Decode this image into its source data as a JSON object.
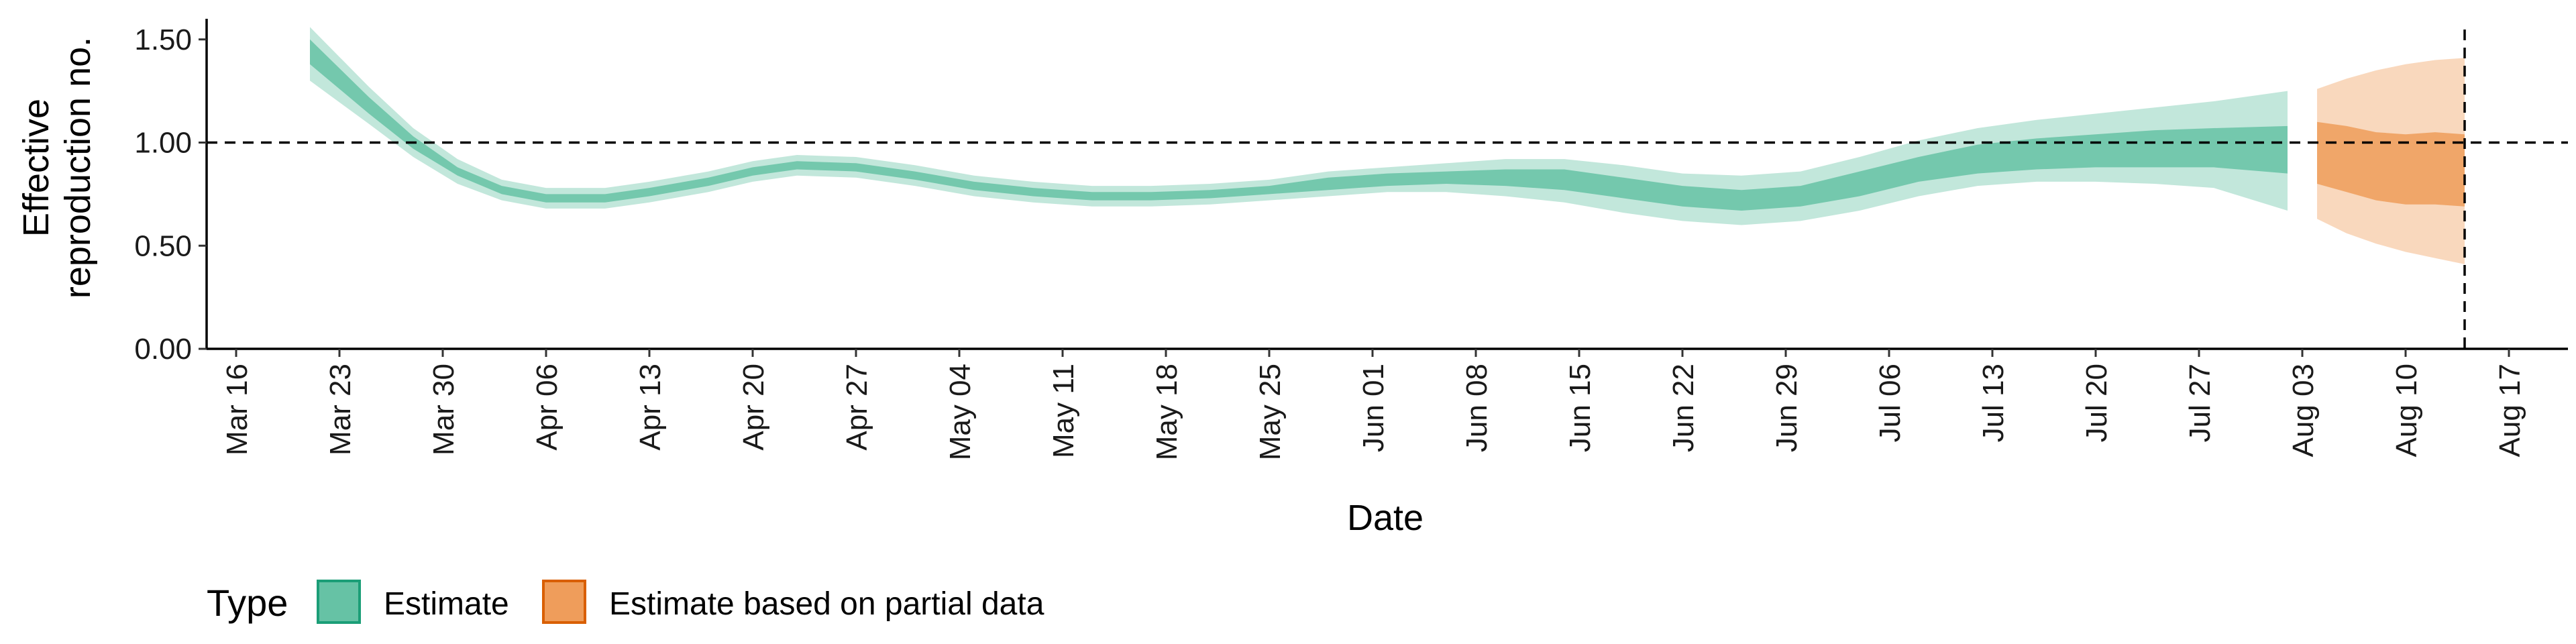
{
  "chart_data": {
    "type": "area",
    "title": "",
    "xlabel": "Date",
    "ylabel_lines": [
      "Effective",
      "reproduction no."
    ],
    "ylim": [
      0,
      1.6
    ],
    "y_ticks": [
      0,
      0.5,
      1.0,
      1.5
    ],
    "y_tick_labels": [
      "0.00",
      "0.50",
      "1.00",
      "1.50"
    ],
    "x_range": [
      "2020-03-14",
      "2020-08-21"
    ],
    "x_ticks": [
      "2020-03-16",
      "2020-03-23",
      "2020-03-30",
      "2020-04-06",
      "2020-04-13",
      "2020-04-20",
      "2020-04-27",
      "2020-05-04",
      "2020-05-11",
      "2020-05-18",
      "2020-05-25",
      "2020-06-01",
      "2020-06-08",
      "2020-06-15",
      "2020-06-22",
      "2020-06-29",
      "2020-07-06",
      "2020-07-13",
      "2020-07-20",
      "2020-07-27",
      "2020-08-03",
      "2020-08-10",
      "2020-08-17"
    ],
    "x_tick_labels": [
      "Mar 16",
      "Mar 23",
      "Mar 30",
      "Apr 06",
      "Apr 13",
      "Apr 20",
      "Apr 27",
      "May 04",
      "May 11",
      "May 18",
      "May 25",
      "Jun 01",
      "Jun 08",
      "Jun 15",
      "Jun 22",
      "Jun 29",
      "Jul 06",
      "Jul 13",
      "Jul 20",
      "Jul 27",
      "Aug 03",
      "Aug 10",
      "Aug 17"
    ],
    "hline": 1.0,
    "vline": "2020-08-14",
    "legend_position": "bottom-left",
    "legend_title": "Type",
    "series": [
      {
        "name": "Estimate",
        "fill_color": "#66c2a5",
        "border_color": "#1b9e77",
        "x": [
          "2020-03-21",
          "2020-03-25",
          "2020-03-28",
          "2020-03-31",
          "2020-04-03",
          "2020-04-06",
          "2020-04-10",
          "2020-04-13",
          "2020-04-17",
          "2020-04-20",
          "2020-04-23",
          "2020-04-27",
          "2020-05-01",
          "2020-05-05",
          "2020-05-09",
          "2020-05-13",
          "2020-05-17",
          "2020-05-21",
          "2020-05-25",
          "2020-05-29",
          "2020-06-02",
          "2020-06-06",
          "2020-06-10",
          "2020-06-14",
          "2020-06-18",
          "2020-06-22",
          "2020-06-26",
          "2020-06-30",
          "2020-07-04",
          "2020-07-08",
          "2020-07-12",
          "2020-07-16",
          "2020-07-20",
          "2020-07-24",
          "2020-07-28",
          "2020-08-02"
        ],
        "median": [
          1.44,
          1.18,
          1.0,
          0.86,
          0.77,
          0.73,
          0.73,
          0.76,
          0.81,
          0.86,
          0.89,
          0.88,
          0.84,
          0.79,
          0.76,
          0.74,
          0.74,
          0.75,
          0.77,
          0.8,
          0.82,
          0.83,
          0.83,
          0.82,
          0.78,
          0.74,
          0.72,
          0.74,
          0.8,
          0.87,
          0.92,
          0.95,
          0.96,
          0.97,
          0.98,
          0.97
        ],
        "inner_lower": [
          1.38,
          1.14,
          0.97,
          0.84,
          0.75,
          0.71,
          0.71,
          0.74,
          0.79,
          0.84,
          0.87,
          0.86,
          0.82,
          0.77,
          0.74,
          0.72,
          0.72,
          0.73,
          0.75,
          0.77,
          0.79,
          0.8,
          0.79,
          0.77,
          0.73,
          0.69,
          0.67,
          0.69,
          0.74,
          0.81,
          0.85,
          0.87,
          0.88,
          0.88,
          0.88,
          0.85
        ],
        "inner_upper": [
          1.5,
          1.22,
          1.03,
          0.88,
          0.79,
          0.75,
          0.75,
          0.78,
          0.83,
          0.88,
          0.91,
          0.9,
          0.86,
          0.81,
          0.78,
          0.76,
          0.76,
          0.77,
          0.79,
          0.83,
          0.85,
          0.86,
          0.87,
          0.87,
          0.83,
          0.79,
          0.77,
          0.79,
          0.86,
          0.93,
          0.99,
          1.02,
          1.04,
          1.06,
          1.07,
          1.08
        ],
        "outer_lower": [
          1.3,
          1.09,
          0.93,
          0.8,
          0.72,
          0.68,
          0.68,
          0.71,
          0.76,
          0.81,
          0.84,
          0.83,
          0.79,
          0.74,
          0.71,
          0.69,
          0.69,
          0.7,
          0.72,
          0.74,
          0.76,
          0.76,
          0.74,
          0.71,
          0.66,
          0.62,
          0.6,
          0.62,
          0.67,
          0.74,
          0.79,
          0.81,
          0.81,
          0.8,
          0.78,
          0.67
        ],
        "outer_upper": [
          1.56,
          1.27,
          1.07,
          0.92,
          0.82,
          0.78,
          0.78,
          0.81,
          0.86,
          0.91,
          0.94,
          0.93,
          0.89,
          0.84,
          0.81,
          0.79,
          0.79,
          0.8,
          0.82,
          0.86,
          0.88,
          0.9,
          0.92,
          0.92,
          0.89,
          0.85,
          0.84,
          0.86,
          0.93,
          1.01,
          1.07,
          1.11,
          1.14,
          1.17,
          1.2,
          1.25
        ]
      },
      {
        "name": "Estimate based on partial data",
        "fill_color": "#ef9d5b",
        "border_color": "#d95f02",
        "x": [
          "2020-08-04",
          "2020-08-06",
          "2020-08-08",
          "2020-08-10",
          "2020-08-12",
          "2020-08-14"
        ],
        "median": [
          0.9,
          0.88,
          0.86,
          0.86,
          0.86,
          0.86
        ],
        "inner_lower": [
          0.8,
          0.76,
          0.72,
          0.7,
          0.7,
          0.69
        ],
        "inner_upper": [
          1.1,
          1.08,
          1.05,
          1.04,
          1.05,
          1.04
        ],
        "outer_lower": [
          0.63,
          0.56,
          0.51,
          0.47,
          0.44,
          0.41
        ],
        "outer_upper": [
          1.26,
          1.31,
          1.35,
          1.38,
          1.4,
          1.41
        ]
      }
    ]
  }
}
